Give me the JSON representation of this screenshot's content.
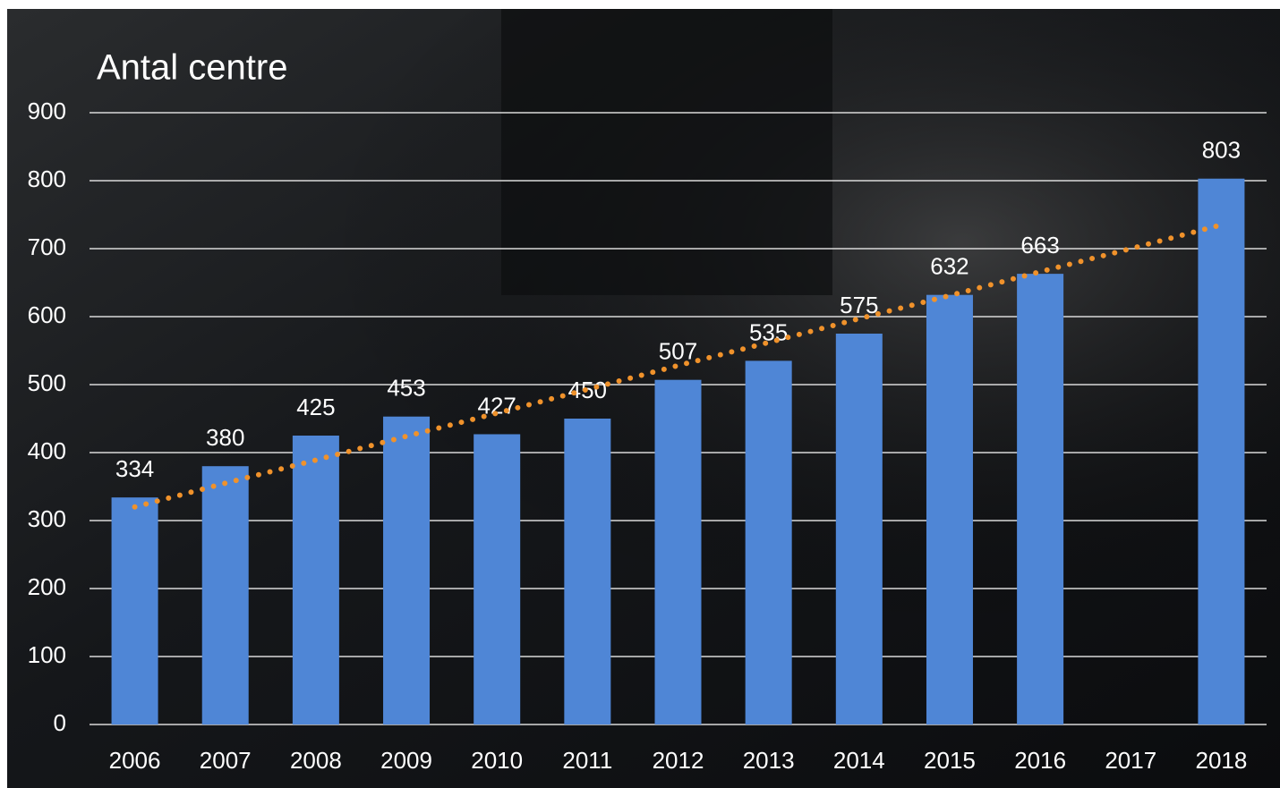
{
  "chart_data": {
    "type": "bar",
    "title": "Antal centre",
    "categories": [
      "2006",
      "2007",
      "2008",
      "2009",
      "2010",
      "2011",
      "2012",
      "2013",
      "2014",
      "2015",
      "2016",
      "2017",
      "2018"
    ],
    "values": [
      334,
      380,
      425,
      453,
      427,
      450,
      507,
      535,
      575,
      632,
      663,
      null,
      803
    ],
    "color": "#4f86d6",
    "trendline": {
      "color": "#f0922b",
      "values": [
        320,
        355,
        389,
        424,
        458,
        493,
        528,
        562,
        597,
        631,
        666,
        700,
        735
      ]
    },
    "ylim": [
      0,
      900
    ],
    "yticks": [
      0,
      100,
      200,
      300,
      400,
      500,
      600,
      700,
      800,
      900
    ],
    "grid": true
  }
}
